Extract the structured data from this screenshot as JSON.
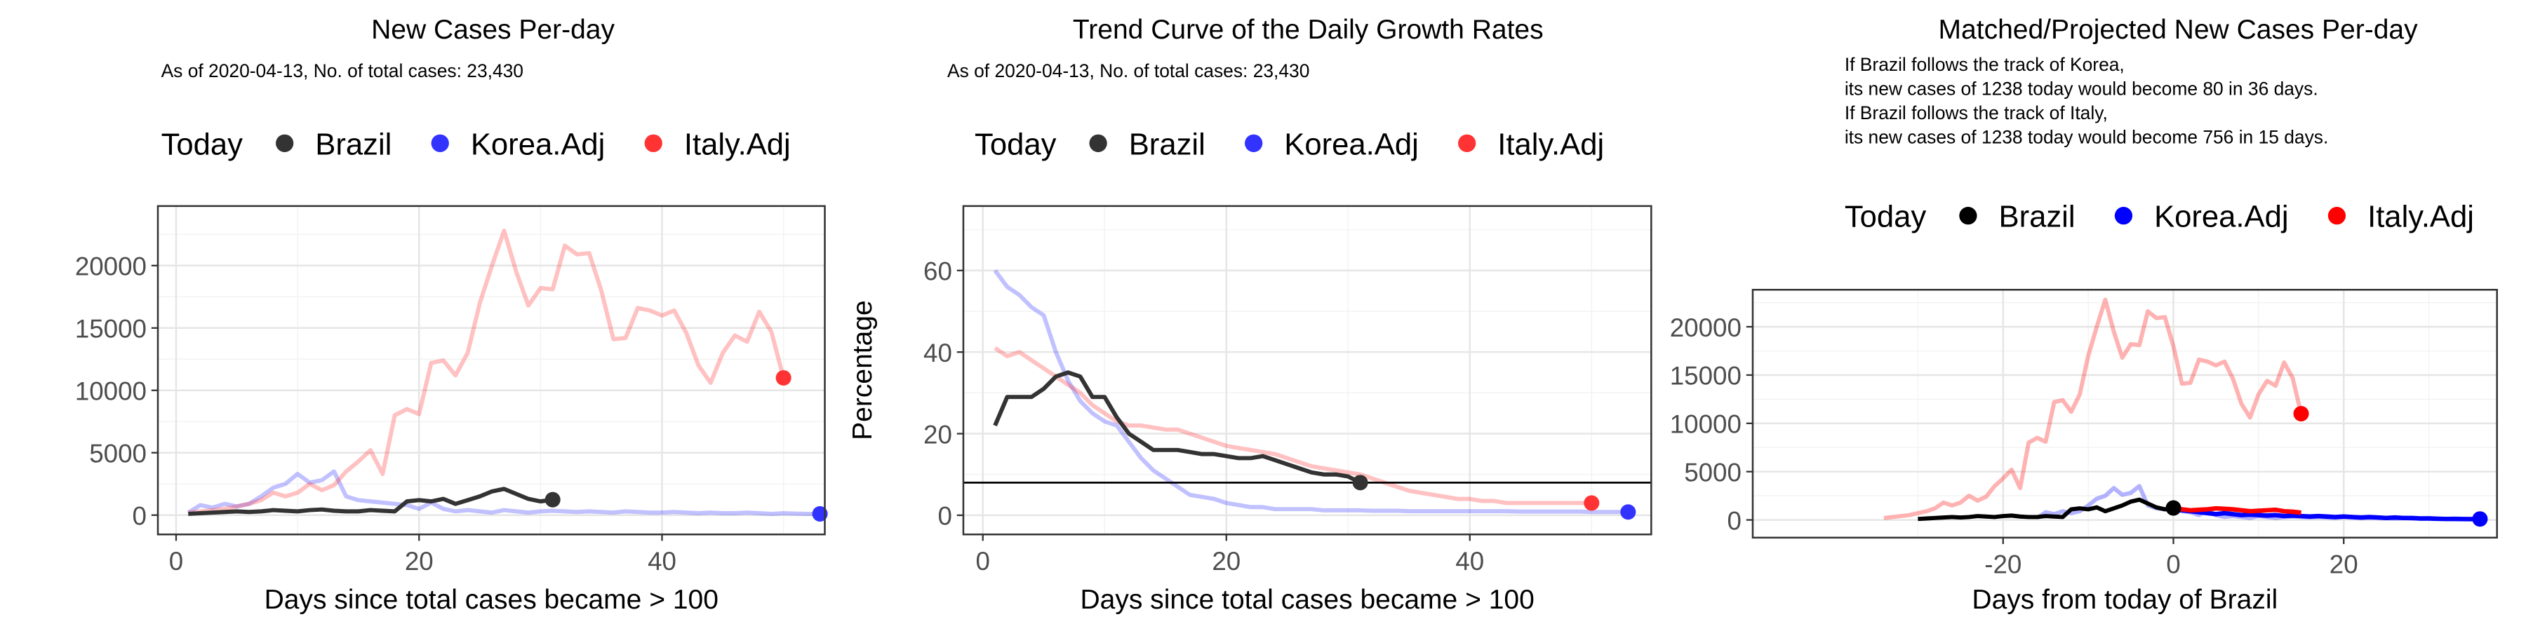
{
  "chart_data": [
    {
      "type": "line",
      "title": "New Cases Per-day",
      "subtitle": "As of 2020-04-13, No. of total cases: 23,430",
      "legend_title": "Today",
      "xlabel": "Days since total cases became > 100",
      "xlim": [
        -1.5,
        53.4
      ],
      "xticks": [
        0,
        20,
        40
      ],
      "ylim": [
        -1548,
        24774
      ],
      "yticks": [
        0,
        5000,
        10000,
        15000,
        20000
      ],
      "grid": true,
      "series": [
        {
          "name": "Brazil",
          "color": "#333333",
          "line_alpha": 1,
          "x": [
            1,
            2,
            3,
            4,
            5,
            6,
            7,
            8,
            9,
            10,
            11,
            12,
            13,
            14,
            15,
            16,
            17,
            18,
            19,
            20,
            21,
            22,
            23,
            24,
            25,
            26,
            27,
            28,
            29,
            30,
            31
          ],
          "values": [
            100,
            150,
            200,
            250,
            300,
            250,
            300,
            400,
            350,
            300,
            400,
            450,
            350,
            300,
            300,
            400,
            350,
            300,
            1100,
            1200,
            1100,
            1300,
            900,
            1200,
            1500,
            1900,
            2100,
            1700,
            1300,
            1100,
            1238
          ]
        },
        {
          "name": "Korea.Adj",
          "color": "#3333ff",
          "line_alpha": 0.3,
          "x": [
            1,
            2,
            3,
            4,
            5,
            6,
            7,
            8,
            9,
            10,
            11,
            12,
            13,
            14,
            15,
            16,
            17,
            18,
            19,
            20,
            21,
            22,
            23,
            24,
            25,
            26,
            27,
            28,
            29,
            30,
            31,
            32,
            33,
            34,
            35,
            36,
            37,
            38,
            39,
            40,
            41,
            42,
            43,
            44,
            45,
            46,
            47,
            48,
            49,
            50,
            51,
            52,
            53
          ],
          "values": [
            200,
            800,
            600,
            900,
            700,
            900,
            1500,
            2200,
            2500,
            3300,
            2600,
            2800,
            3500,
            1500,
            1200,
            1100,
            1000,
            900,
            800,
            500,
            1000,
            500,
            300,
            400,
            300,
            200,
            400,
            300,
            200,
            300,
            350,
            300,
            250,
            300,
            250,
            200,
            300,
            250,
            200,
            200,
            250,
            200,
            150,
            200,
            150,
            150,
            200,
            150,
            100,
            150,
            120,
            100,
            100
          ]
        },
        {
          "name": "Italy.Adj",
          "color": "#ff3333",
          "line_alpha": 0.3,
          "x": [
            1,
            2,
            3,
            4,
            5,
            6,
            7,
            8,
            9,
            10,
            11,
            12,
            13,
            14,
            15,
            16,
            17,
            18,
            19,
            20,
            21,
            22,
            23,
            24,
            25,
            26,
            27,
            28,
            29,
            30,
            31,
            32,
            33,
            34,
            35,
            36,
            37,
            38,
            39,
            40,
            41,
            42,
            43,
            44,
            45,
            46,
            47,
            48,
            49,
            50
          ],
          "values": [
            200,
            300,
            400,
            500,
            700,
            900,
            1200,
            1800,
            1500,
            1800,
            2500,
            2000,
            2400,
            3500,
            4300,
            5200,
            3300,
            8000,
            8500,
            8100,
            12200,
            12400,
            11200,
            13000,
            17000,
            20000,
            22800,
            19500,
            16800,
            18200,
            18100,
            21600,
            20900,
            21000,
            18000,
            14100,
            14200,
            16600,
            16400,
            16000,
            16400,
            14600,
            12000,
            10600,
            13000,
            14400,
            13900,
            16300,
            14700,
            11000
          ]
        }
      ]
    },
    {
      "type": "line",
      "title": "Trend Curve of the Daily Growth Rates",
      "subtitle": "As of 2020-04-13, No. of total cases: 23,430",
      "legend_title": "Today",
      "xlabel": "Days since total cases became > 100",
      "ylabel": "Percentage",
      "xlim": [
        -1.6,
        54.9
      ],
      "xticks": [
        0,
        20,
        40
      ],
      "ylim": [
        -4.7,
        75.8
      ],
      "yticks": [
        0,
        20,
        40,
        60
      ],
      "grid": true,
      "hline": 8,
      "series": [
        {
          "name": "Brazil",
          "color": "#333333",
          "line_alpha": 1,
          "x": [
            1,
            2,
            3,
            4,
            5,
            6,
            7,
            8,
            9,
            10,
            11,
            12,
            13,
            14,
            15,
            16,
            17,
            18,
            19,
            20,
            21,
            22,
            23,
            24,
            25,
            26,
            27,
            28,
            29,
            30,
            31
          ],
          "values": [
            22,
            29,
            29,
            29,
            31,
            34,
            35,
            34,
            29,
            29,
            24,
            20,
            18,
            16,
            16,
            16,
            15.5,
            15,
            15,
            14.5,
            14,
            14,
            14.5,
            13.5,
            12.5,
            11.5,
            10.5,
            10,
            10,
            9.5,
            8
          ]
        },
        {
          "name": "Korea.Adj",
          "color": "#3333ff",
          "line_alpha": 0.3,
          "x": [
            1,
            2,
            3,
            4,
            5,
            6,
            7,
            8,
            9,
            10,
            11,
            12,
            13,
            14,
            15,
            16,
            17,
            18,
            19,
            20,
            21,
            22,
            23,
            24,
            25,
            26,
            27,
            28,
            29,
            30,
            31,
            32,
            33,
            34,
            35,
            36,
            37,
            38,
            39,
            40,
            41,
            42,
            43,
            44,
            45,
            46,
            47,
            48,
            49,
            50,
            51,
            52,
            53
          ],
          "values": [
            60,
            56,
            54,
            51,
            49,
            40,
            33,
            28,
            25,
            23,
            22,
            18,
            14,
            11,
            9,
            7,
            5,
            4.5,
            4,
            3,
            2.5,
            2,
            2,
            1.5,
            1.5,
            1.5,
            1.5,
            1.2,
            1.2,
            1.2,
            1.2,
            1.1,
            1.1,
            1.1,
            1,
            1,
            1,
            1,
            1,
            1,
            1,
            1,
            1,
            0.9,
            0.9,
            0.9,
            0.9,
            0.9,
            0.9,
            0.8,
            0.8,
            0.8,
            0.8
          ]
        },
        {
          "name": "Italy.Adj",
          "color": "#ff3333",
          "line_alpha": 0.3,
          "x": [
            1,
            2,
            3,
            4,
            5,
            6,
            7,
            8,
            9,
            10,
            11,
            12,
            13,
            14,
            15,
            16,
            17,
            18,
            19,
            20,
            21,
            22,
            23,
            24,
            25,
            26,
            27,
            28,
            29,
            30,
            31,
            32,
            33,
            34,
            35,
            36,
            37,
            38,
            39,
            40,
            41,
            42,
            43,
            44,
            45,
            46,
            47,
            48,
            49,
            50
          ],
          "values": [
            41,
            39,
            40,
            38,
            36,
            34,
            32,
            30,
            27,
            25,
            23,
            22,
            22,
            21.5,
            21,
            21,
            20,
            19,
            18,
            17,
            16.5,
            16,
            15.5,
            15,
            14,
            13,
            12,
            11.5,
            11,
            10.5,
            10,
            9,
            8,
            7,
            6,
            5.5,
            5,
            4.5,
            4,
            4,
            3.5,
            3.5,
            3,
            3,
            3,
            3,
            3,
            3,
            3,
            3
          ]
        }
      ]
    },
    {
      "type": "line",
      "title": "Matched/Projected New Cases Per-day",
      "subtitle": [
        "If Brazil follows the track of Korea,",
        "its new cases of 1238 today would become 80 in 36 days.",
        "If Brazil follows the track of Italy,",
        "its new cases of 1238 today would become 756 in 15 days."
      ],
      "legend_title": "Today",
      "xlabel": "Days from today of Brazil",
      "xlim": [
        -49.4,
        38
      ],
      "xticks": [
        -20,
        0,
        20
      ],
      "ylim": [
        -1833,
        23833
      ],
      "yticks": [
        0,
        5000,
        10000,
        15000,
        20000
      ],
      "grid": true,
      "series": [
        {
          "name": "Brazil",
          "color": "#000000",
          "line_alpha": 1,
          "x": [
            -30,
            -29,
            -28,
            -27,
            -26,
            -25,
            -24,
            -23,
            -22,
            -21,
            -20,
            -19,
            -18,
            -17,
            -16,
            -15,
            -14,
            -13,
            -12,
            -11,
            -10,
            -9,
            -8,
            -7,
            -6,
            -5,
            -4,
            -3,
            -2,
            -1,
            0
          ],
          "values": [
            100,
            150,
            200,
            250,
            300,
            250,
            300,
            400,
            350,
            300,
            400,
            450,
            350,
            300,
            300,
            400,
            350,
            300,
            1100,
            1200,
            1100,
            1300,
            900,
            1200,
            1500,
            1900,
            2100,
            1700,
            1300,
            1100,
            1238
          ]
        },
        {
          "name": "Korea.Adj",
          "color": "#0000ff",
          "line_alpha": 0.3,
          "x": [
            -16,
            -15,
            -14,
            -13,
            -12,
            -11,
            -10,
            -9,
            -8,
            -7,
            -6,
            -5,
            -4,
            -3,
            -2,
            -1,
            0,
            1,
            2,
            3,
            4,
            5,
            6,
            7,
            8,
            9,
            10,
            11,
            12,
            13,
            14,
            15,
            16,
            17,
            18,
            19,
            20,
            21,
            22,
            23,
            24,
            25,
            26,
            27,
            28,
            29,
            30,
            31,
            32,
            33,
            34,
            35,
            36
          ],
          "values": [
            200,
            800,
            600,
            900,
            700,
            900,
            1500,
            2200,
            2500,
            3300,
            2600,
            2800,
            3500,
            1500,
            1200,
            1100,
            1000,
            900,
            800,
            500,
            1000,
            500,
            300,
            400,
            300,
            200,
            400,
            300,
            200,
            300,
            350,
            300,
            250,
            300,
            250,
            200,
            300,
            250,
            200,
            200,
            250,
            200,
            150,
            200,
            150,
            150,
            200,
            150,
            100,
            150,
            120,
            100,
            100
          ],
          "projected_x": [
            0,
            1,
            2,
            3,
            4,
            5,
            6,
            7,
            8,
            9,
            10,
            11,
            12,
            13,
            14,
            15,
            16,
            17,
            18,
            19,
            20,
            21,
            22,
            23,
            24,
            25,
            26,
            27,
            28,
            29,
            30,
            31,
            32,
            33,
            34,
            35,
            36
          ],
          "projected_values": [
            1238,
            1000,
            900,
            800,
            700,
            600,
            700,
            600,
            500,
            550,
            500,
            450,
            500,
            400,
            450,
            400,
            350,
            400,
            350,
            300,
            350,
            300,
            250,
            300,
            250,
            200,
            250,
            200,
            200,
            150,
            150,
            120,
            100,
            100,
            90,
            85,
            80
          ]
        },
        {
          "name": "Italy.Adj",
          "color": "#ff0000",
          "line_alpha": 0.3,
          "x": [
            -34,
            -33,
            -32,
            -31,
            -30,
            -29,
            -28,
            -27,
            -26,
            -25,
            -24,
            -23,
            -22,
            -21,
            -20,
            -19,
            -18,
            -17,
            -16,
            -15,
            -14,
            -13,
            -12,
            -11,
            -10,
            -9,
            -8,
            -7,
            -6,
            -5,
            -4,
            -3,
            -2,
            -1,
            0,
            1,
            2,
            3,
            4,
            5,
            6,
            7,
            8,
            9,
            10,
            11,
            12,
            13,
            14,
            15
          ],
          "values": [
            200,
            300,
            400,
            500,
            700,
            900,
            1200,
            1800,
            1500,
            1800,
            2500,
            2000,
            2400,
            3500,
            4300,
            5200,
            3300,
            8000,
            8500,
            8100,
            12200,
            12400,
            11200,
            13000,
            17000,
            20000,
            22800,
            19500,
            16800,
            18200,
            18100,
            21600,
            20900,
            21000,
            18000,
            14100,
            14200,
            16600,
            16400,
            16000,
            16400,
            14600,
            12000,
            10600,
            13000,
            14400,
            13900,
            16300,
            14700,
            11000
          ],
          "projected_x": [
            0,
            1,
            2,
            3,
            4,
            5,
            6,
            7,
            8,
            9,
            10,
            11,
            12,
            13,
            14,
            15
          ],
          "projected_values": [
            1238,
            1100,
            1000,
            1050,
            1100,
            1200,
            1150,
            1100,
            1000,
            900,
            950,
            1000,
            1050,
            900,
            850,
            756
          ]
        }
      ]
    }
  ]
}
